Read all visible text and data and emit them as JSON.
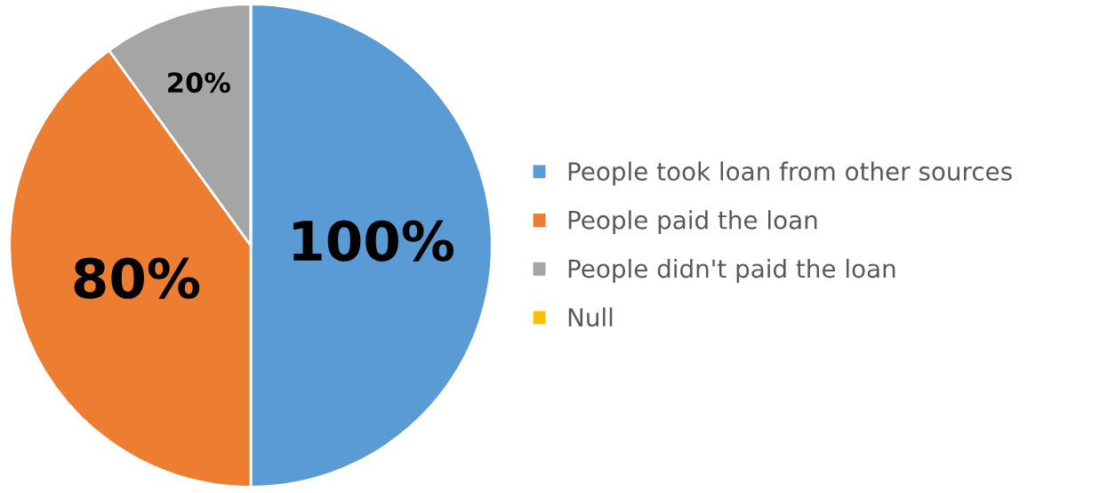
{
  "chart_data": {
    "type": "pie",
    "categories": [
      "People took loan from other sources",
      "People paid the loan",
      "People didn't paid the loan",
      "Null"
    ],
    "values": [
      100,
      80,
      20,
      0
    ],
    "colors": [
      "#5b9bd5",
      "#ed7d31",
      "#a5a5a5",
      "#ffc000"
    ],
    "value_labels": [
      "100%",
      "80%",
      "20%",
      null
    ],
    "legend": "right"
  }
}
